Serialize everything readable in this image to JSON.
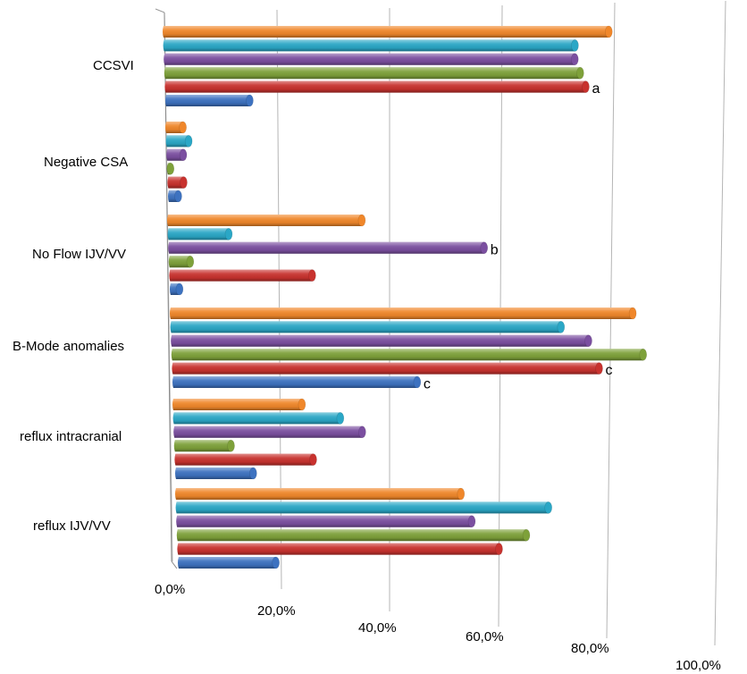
{
  "chart_data": {
    "type": "bar",
    "orientation": "horizontal",
    "style": "3d-cylinder",
    "categories": [
      "CCSVI",
      "Negative CSA",
      "No Flow IJV/VV",
      "B-Mode anomalies",
      "reflux intracranial",
      "reflux IJV/VV"
    ],
    "xticks": [
      "0,0%",
      "20,0%",
      "40,0%",
      "60,0%",
      "80,0%",
      "100,0%"
    ],
    "xlim": [
      0,
      100
    ],
    "grid": true,
    "legend": "none",
    "series": [
      {
        "color": "#f0872a",
        "values": [
          79,
          3,
          35,
          84,
          24,
          53
        ]
      },
      {
        "color": "#2aa7c6",
        "values": [
          73,
          4,
          11,
          71,
          31,
          69
        ]
      },
      {
        "color": "#7b4fa0",
        "values": [
          73,
          3,
          57,
          76,
          35,
          55
        ]
      },
      {
        "color": "#7ea13a",
        "values": [
          74,
          0.5,
          4,
          86,
          11,
          65
        ]
      },
      {
        "color": "#c8322e",
        "values": [
          75,
          3,
          26,
          78,
          26,
          60
        ]
      },
      {
        "color": "#3d72c0",
        "values": [
          15,
          2,
          2,
          45,
          15,
          19
        ]
      }
    ],
    "annotations": [
      {
        "category": "CCSVI",
        "series": 4,
        "text": "a"
      },
      {
        "category": "No Flow IJV/VV",
        "series": 2,
        "text": "b"
      },
      {
        "category": "B-Mode anomalies",
        "series": 5,
        "text": "c"
      },
      {
        "category": "B-Mode anomalies",
        "series": 4,
        "text": "c"
      }
    ]
  }
}
